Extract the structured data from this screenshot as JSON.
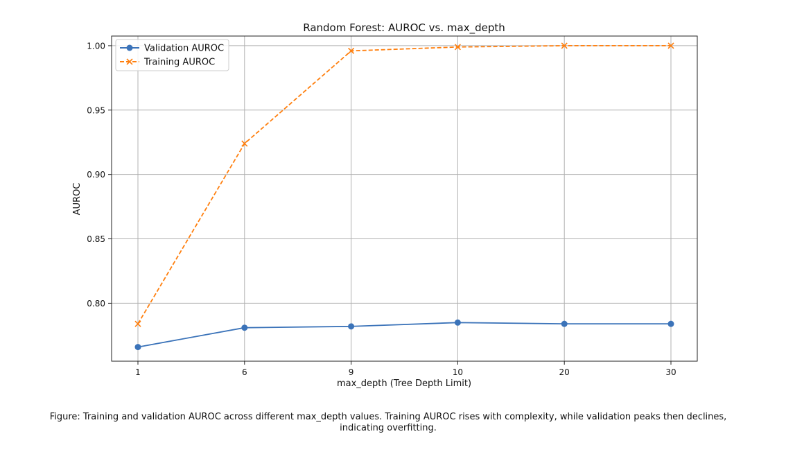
{
  "chart_data": {
    "type": "line",
    "title": "Random Forest: AUROC vs. max_depth",
    "xlabel": "max_depth (Tree Depth Limit)",
    "ylabel": "AUROC",
    "categories": [
      "1",
      "6",
      "9",
      "10",
      "20",
      "30"
    ],
    "ylim": [
      0.755,
      1.0075
    ],
    "yticks": [
      "0.80",
      "0.85",
      "0.90",
      "0.95",
      "1.00"
    ],
    "grid": true,
    "legend_position": "top-left",
    "series": [
      {
        "name": "Validation AUROC",
        "values": [
          0.766,
          0.781,
          0.782,
          0.785,
          0.784,
          0.784
        ],
        "color": "#3b73b9",
        "line_style": "solid",
        "marker": "circle"
      },
      {
        "name": "Training AUROC",
        "values": [
          0.784,
          0.924,
          0.996,
          0.999,
          1.0,
          1.0
        ],
        "color": "#ff7f0e",
        "line_style": "dashed",
        "marker": "x"
      }
    ]
  },
  "caption": "Figure: Training and validation AUROC across different max_depth values. Training AUROC rises with complexity, while validation peaks then declines, indicating overfitting."
}
